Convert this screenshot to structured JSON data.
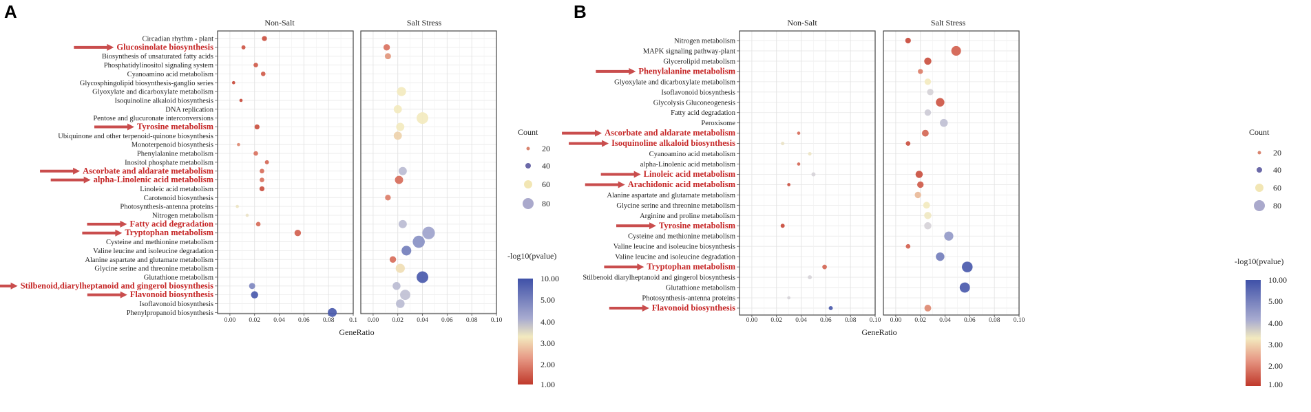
{
  "figure": {
    "legend": {
      "count_title": "Count",
      "count_values": [
        20,
        40,
        60,
        80
      ],
      "color_title": "-log10(pvalue)",
      "color_ticks": [
        "10.00",
        "5.00",
        "4.00",
        "3.00",
        "2.00",
        "1.00"
      ]
    },
    "colors": {
      "low": "#c0392b",
      "mid": "#f4e9b8",
      "high": "#3f51a8",
      "highlight_text": "#c62828",
      "arrow": "#c94d4d"
    }
  },
  "chart_data": [
    {
      "panel": "A",
      "type": "scatter",
      "xlabel": "GeneRatio",
      "xlim": [
        -0.01,
        0.1
      ],
      "xticks": [
        "0.00",
        "0.02",
        "0.04",
        "0.06",
        "0.08",
        "0.1"
      ],
      "xlim2": [
        -0.01,
        0.1
      ],
      "xticks2": [
        "0.00",
        "0.02",
        "0.04",
        "0.06",
        "0.08",
        "0.10"
      ],
      "facets": [
        "Non-Salt",
        "Salt Stress"
      ],
      "pathways": [
        {
          "name": "Circadian rhythm - plant",
          "highlight": false
        },
        {
          "name": "Glucosinolate biosynthesis",
          "highlight": true
        },
        {
          "name": "Biosynthesis of unsaturated fatty acids",
          "highlight": false
        },
        {
          "name": "Phosphatidylinositol signaling system",
          "highlight": false
        },
        {
          "name": "Cyanoamino acid metabolism",
          "highlight": false
        },
        {
          "name": "Glycosphingolipid biosynthesis-ganglio series",
          "highlight": false
        },
        {
          "name": "Glyoxylate and dicarboxylate metabolism",
          "highlight": false
        },
        {
          "name": "Isoquinoline alkaloid biosynthesis",
          "highlight": false
        },
        {
          "name": "DNA replication",
          "highlight": false
        },
        {
          "name": "Pentose and glucuronate interconversions",
          "highlight": false
        },
        {
          "name": "Tyrosine metabolism",
          "highlight": true
        },
        {
          "name": "Ubiquinone and other terpenoid-quinone biosynthesis",
          "highlight": false
        },
        {
          "name": "Monoterpenoid biosynthesis",
          "highlight": false
        },
        {
          "name": "Phenylalanine metabolism",
          "highlight": false
        },
        {
          "name": "Inositol phosphate metabolism",
          "highlight": false
        },
        {
          "name": "Ascorbate and aldarate metabolism",
          "highlight": true
        },
        {
          "name": "alpha-Linolenic acid metabolism",
          "highlight": true
        },
        {
          "name": "Linoleic acid metabolism",
          "highlight": false
        },
        {
          "name": "Carotenoid biosynthesis",
          "highlight": false
        },
        {
          "name": "Photosynthesis-antenna proteins",
          "highlight": false
        },
        {
          "name": "Nitrogen metabolism",
          "highlight": false
        },
        {
          "name": "Fatty acid degradation",
          "highlight": true
        },
        {
          "name": "Tryptophan metabolism",
          "highlight": true
        },
        {
          "name": "Cysteine and methionine metabolism",
          "highlight": false
        },
        {
          "name": "Valine leucine and isoleucine degradation",
          "highlight": false
        },
        {
          "name": "Alanine aspartate and glutamate metabolism",
          "highlight": false
        },
        {
          "name": "Glycine serine and threonine metabolism",
          "highlight": false
        },
        {
          "name": "Glutathione metabolism",
          "highlight": false
        },
        {
          "name": "Stilbenoid,diarylheptanoid and gingerol biosynthesis",
          "highlight": true
        },
        {
          "name": "Flavonoid biosynthesis",
          "highlight": true
        },
        {
          "name": "Isoflavonoid biosynthesis",
          "highlight": false
        },
        {
          "name": "Phenylpropanoid biosynthesis",
          "highlight": false
        }
      ],
      "series": [
        {
          "name": "Non-Salt",
          "points": [
            {
              "row": 0,
              "x": 0.028,
              "count": 12,
              "p": 1.4
            },
            {
              "row": 1,
              "x": 0.011,
              "count": 8,
              "p": 1.5
            },
            {
              "row": 3,
              "x": 0.021,
              "count": 10,
              "p": 1.6
            },
            {
              "row": 4,
              "x": 0.027,
              "count": 10,
              "p": 1.6
            },
            {
              "row": 5,
              "x": 0.003,
              "count": 5,
              "p": 1.3
            },
            {
              "row": 7,
              "x": 0.009,
              "count": 5,
              "p": 1.3
            },
            {
              "row": 10,
              "x": 0.022,
              "count": 12,
              "p": 1.4
            },
            {
              "row": 12,
              "x": 0.007,
              "count": 5,
              "p": 2.2
            },
            {
              "row": 13,
              "x": 0.021,
              "count": 10,
              "p": 2.0
            },
            {
              "row": 14,
              "x": 0.03,
              "count": 8,
              "p": 1.8
            },
            {
              "row": 15,
              "x": 0.026,
              "count": 10,
              "p": 1.9
            },
            {
              "row": 16,
              "x": 0.026,
              "count": 10,
              "p": 2.0
            },
            {
              "row": 17,
              "x": 0.026,
              "count": 12,
              "p": 1.4
            },
            {
              "row": 19,
              "x": 0.006,
              "count": 5,
              "p": 3.2
            },
            {
              "row": 20,
              "x": 0.014,
              "count": 5,
              "p": 3.3
            },
            {
              "row": 21,
              "x": 0.023,
              "count": 10,
              "p": 1.9
            },
            {
              "row": 22,
              "x": 0.055,
              "count": 20,
              "p": 1.7
            },
            {
              "row": 28,
              "x": 0.018,
              "count": 18,
              "p": 7.0
            },
            {
              "row": 29,
              "x": 0.02,
              "count": 25,
              "p": 9.5
            },
            {
              "row": 31,
              "x": 0.083,
              "count": 38,
              "p": 9.5
            }
          ]
        },
        {
          "name": "Salt Stress",
          "points": [
            {
              "row": 1,
              "x": 0.011,
              "count": 20,
              "p": 2.0
            },
            {
              "row": 2,
              "x": 0.012,
              "count": 18,
              "p": 2.3
            },
            {
              "row": 6,
              "x": 0.023,
              "count": 40,
              "p": 3.0
            },
            {
              "row": 8,
              "x": 0.02,
              "count": 32,
              "p": 3.0
            },
            {
              "row": 9,
              "x": 0.04,
              "count": 65,
              "p": 3.0
            },
            {
              "row": 10,
              "x": 0.022,
              "count": 32,
              "p": 3.0
            },
            {
              "row": 11,
              "x": 0.02,
              "count": 32,
              "p": 2.8
            },
            {
              "row": 15,
              "x": 0.024,
              "count": 32,
              "p": 4.6
            },
            {
              "row": 16,
              "x": 0.021,
              "count": 32,
              "p": 1.9
            },
            {
              "row": 18,
              "x": 0.012,
              "count": 16,
              "p": 2.1
            },
            {
              "row": 21,
              "x": 0.024,
              "count": 32,
              "p": 4.6
            },
            {
              "row": 22,
              "x": 0.045,
              "count": 75,
              "p": 5.5
            },
            {
              "row": 23,
              "x": 0.037,
              "count": 70,
              "p": 6.5
            },
            {
              "row": 24,
              "x": 0.027,
              "count": 45,
              "p": 7.5
            },
            {
              "row": 25,
              "x": 0.016,
              "count": 20,
              "p": 1.9
            },
            {
              "row": 26,
              "x": 0.022,
              "count": 40,
              "p": 2.9
            },
            {
              "row": 27,
              "x": 0.04,
              "count": 65,
              "p": 9.5
            },
            {
              "row": 28,
              "x": 0.019,
              "count": 30,
              "p": 4.6
            },
            {
              "row": 29,
              "x": 0.026,
              "count": 50,
              "p": 4.5
            },
            {
              "row": 30,
              "x": 0.022,
              "count": 36,
              "p": 4.6
            }
          ]
        }
      ]
    },
    {
      "panel": "B",
      "type": "scatter",
      "xlabel": "GeneRatio",
      "xlim": [
        -0.01,
        0.1
      ],
      "xticks": [
        "0.00",
        "0.02",
        "0.04",
        "0.06",
        "0.08",
        "0.10"
      ],
      "xlim2": [
        -0.01,
        0.1
      ],
      "xticks2": [
        "0.00",
        "0.02",
        "0.04",
        "0.06",
        "0.08",
        "0.10"
      ],
      "facets": [
        "Non-Salt",
        "Salt Stress"
      ],
      "pathways": [
        {
          "name": "Nitrogen metabolism",
          "highlight": false
        },
        {
          "name": "MAPK signaling pathway-plant",
          "highlight": false
        },
        {
          "name": "Glycerolipid metabolism",
          "highlight": false
        },
        {
          "name": "Phenylalanine metabolism",
          "highlight": true
        },
        {
          "name": "Glyoxylate and dicarboxylate metabolism",
          "highlight": false
        },
        {
          "name": "Isoflavonoid biosynthesis",
          "highlight": false
        },
        {
          "name": "Glycolysis Gluconeogenesis",
          "highlight": false
        },
        {
          "name": "Fatty acid degradation",
          "highlight": false
        },
        {
          "name": "Peroxisome",
          "highlight": false
        },
        {
          "name": "Ascorbate and aldarate metabolism",
          "highlight": true
        },
        {
          "name": "Isoquinoline alkaloid biosynthesis",
          "highlight": true
        },
        {
          "name": "Cyanoamino acid metabolism",
          "highlight": false
        },
        {
          "name": "alpha-Linolenic acid metabolism",
          "highlight": false
        },
        {
          "name": "Linoleic acid metabolism",
          "highlight": true
        },
        {
          "name": "Arachidonic acid metabolism",
          "highlight": true
        },
        {
          "name": "Alanine aspartate and glutamate metabolism",
          "highlight": false
        },
        {
          "name": "Glycine serine and threonine metabolism",
          "highlight": false
        },
        {
          "name": "Arginine and proline metabolism",
          "highlight": false
        },
        {
          "name": "Tyrosine metabolism",
          "highlight": true
        },
        {
          "name": "Cysteine and methionine metabolism",
          "highlight": false
        },
        {
          "name": "Valine leucine and isoleucine biosynthesis",
          "highlight": false
        },
        {
          "name": "Valine leucine and isoleucine degradation",
          "highlight": false
        },
        {
          "name": "Tryptophan metabolism",
          "highlight": true
        },
        {
          "name": "Stilbenoid diarylheptanoid and gingerol biosynthesis",
          "highlight": false
        },
        {
          "name": "Glutathione metabolism",
          "highlight": false
        },
        {
          "name": "Photosynthesis-antenna proteins",
          "highlight": false
        },
        {
          "name": "Flavonoid biosynthesis",
          "highlight": true
        }
      ],
      "series": [
        {
          "name": "Non-Salt",
          "points": [
            {
              "row": 9,
              "x": 0.038,
              "count": 5,
              "p": 1.9
            },
            {
              "row": 10,
              "x": 0.025,
              "count": 6,
              "p": 3.3
            },
            {
              "row": 11,
              "x": 0.047,
              "count": 6,
              "p": 3.2
            },
            {
              "row": 12,
              "x": 0.038,
              "count": 5,
              "p": 1.8
            },
            {
              "row": 13,
              "x": 0.05,
              "count": 8,
              "p": 4.0
            },
            {
              "row": 14,
              "x": 0.03,
              "count": 5,
              "p": 1.4
            },
            {
              "row": 18,
              "x": 0.025,
              "count": 8,
              "p": 1.3
            },
            {
              "row": 22,
              "x": 0.059,
              "count": 10,
              "p": 1.8
            },
            {
              "row": 23,
              "x": 0.047,
              "count": 8,
              "p": 4.0
            },
            {
              "row": 25,
              "x": 0.03,
              "count": 5,
              "p": 4.0
            },
            {
              "row": 26,
              "x": 0.064,
              "count": 8,
              "p": 9.5
            }
          ]
        },
        {
          "name": "Salt Stress",
          "points": [
            {
              "row": 0,
              "x": 0.01,
              "count": 15,
              "p": 1.3
            },
            {
              "row": 1,
              "x": 0.049,
              "count": 45,
              "p": 1.7
            },
            {
              "row": 2,
              "x": 0.026,
              "count": 25,
              "p": 1.4
            },
            {
              "row": 3,
              "x": 0.02,
              "count": 12,
              "p": 2.1
            },
            {
              "row": 4,
              "x": 0.026,
              "count": 20,
              "p": 3.0
            },
            {
              "row": 5,
              "x": 0.028,
              "count": 20,
              "p": 4.0
            },
            {
              "row": 6,
              "x": 0.036,
              "count": 35,
              "p": 1.5
            },
            {
              "row": 7,
              "x": 0.026,
              "count": 20,
              "p": 4.2
            },
            {
              "row": 8,
              "x": 0.039,
              "count": 30,
              "p": 4.5
            },
            {
              "row": 9,
              "x": 0.024,
              "count": 22,
              "p": 1.8
            },
            {
              "row": 10,
              "x": 0.01,
              "count": 10,
              "p": 1.4
            },
            {
              "row": 13,
              "x": 0.019,
              "count": 25,
              "p": 1.4
            },
            {
              "row": 14,
              "x": 0.02,
              "count": 20,
              "p": 1.6
            },
            {
              "row": 15,
              "x": 0.018,
              "count": 20,
              "p": 2.6
            },
            {
              "row": 16,
              "x": 0.025,
              "count": 22,
              "p": 3.0
            },
            {
              "row": 17,
              "x": 0.026,
              "count": 25,
              "p": 3.1
            },
            {
              "row": 18,
              "x": 0.026,
              "count": 25,
              "p": 4.0
            },
            {
              "row": 19,
              "x": 0.043,
              "count": 40,
              "p": 6.0
            },
            {
              "row": 20,
              "x": 0.01,
              "count": 10,
              "p": 1.7
            },
            {
              "row": 21,
              "x": 0.036,
              "count": 35,
              "p": 7.5
            },
            {
              "row": 22,
              "x": 0.058,
              "count": 55,
              "p": 9.5
            },
            {
              "row": 24,
              "x": 0.056,
              "count": 50,
              "p": 9.5
            },
            {
              "row": 26,
              "x": 0.026,
              "count": 22,
              "p": 2.2
            }
          ]
        }
      ]
    }
  ]
}
